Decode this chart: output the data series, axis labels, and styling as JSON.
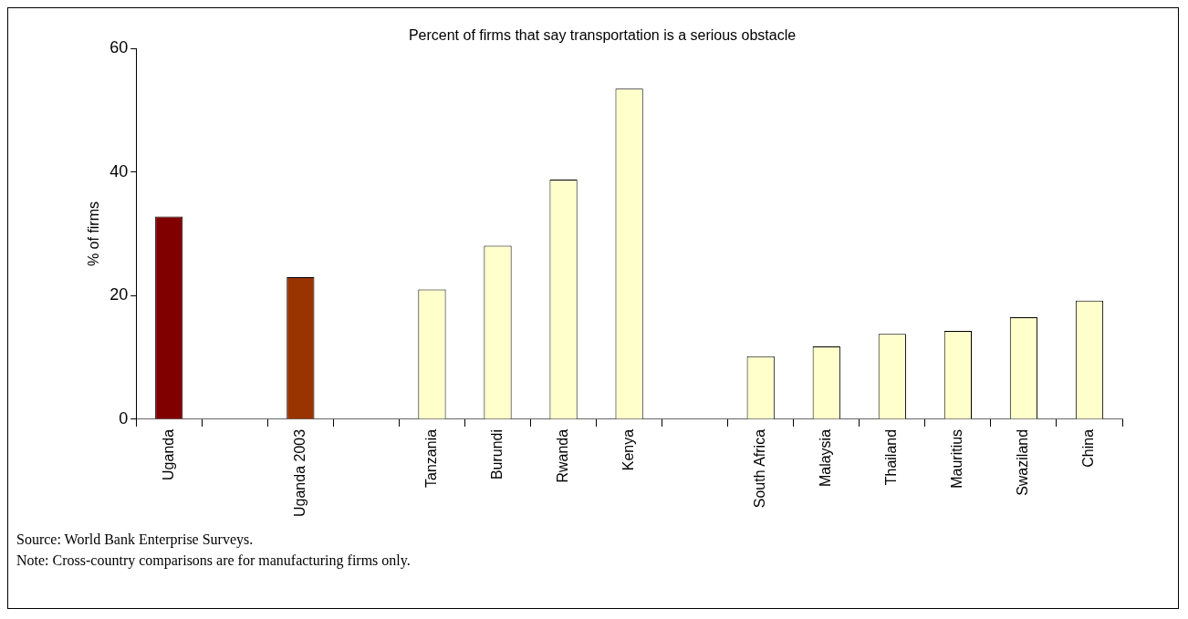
{
  "chart_data": {
    "type": "bar",
    "title": "Percent of firms that say transportation is a serious obstacle",
    "ylabel": "% of firms",
    "categories": [
      "Uganda",
      null,
      "Uganda 2003",
      null,
      "Tanzania",
      "Burundi",
      "Rwanda",
      "Kenya",
      null,
      "South Africa",
      "Malaysia",
      "Thailand",
      "Mauritius",
      "Swaziland",
      "China"
    ],
    "values": [
      32.8,
      null,
      23.0,
      null,
      21.0,
      28.1,
      38.8,
      53.5,
      null,
      10.2,
      11.8,
      13.8,
      14.3,
      16.5,
      19.2
    ],
    "colors": [
      "#800000",
      null,
      "#993300",
      null,
      "#ffffcc",
      "#ffffcc",
      "#ffffcc",
      "#ffffcc",
      null,
      "#ffffcc",
      "#ffffcc",
      "#ffffcc",
      "#ffffcc",
      "#ffffcc",
      "#ffffcc"
    ],
    "ylim": [
      0,
      60
    ],
    "yticks": [
      0,
      20,
      40,
      60
    ],
    "annotations": [
      "Source: World Bank Enterprise Surveys.",
      "Note: Cross-country comparisons are for manufacturing firms only."
    ]
  }
}
